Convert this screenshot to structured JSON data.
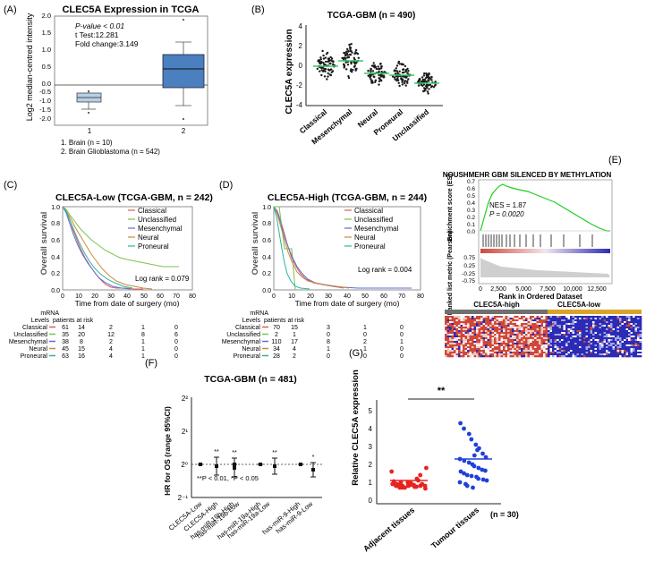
{
  "panels": {
    "A": {
      "letter": "(A)",
      "title": "CLEC5A Expression in TCGA",
      "ylabel": "Log2 median-centred intensity",
      "yticks": [
        "2.0",
        "1.5",
        "1.0",
        "0.5",
        "0.0",
        "-0.5",
        "-1.0",
        "-1.5",
        "-2.0"
      ],
      "xticks": [
        "1",
        "2"
      ],
      "stats": [
        "P-value < 0.01",
        "t Test:12.281",
        "Fold change:3.149"
      ],
      "legend": [
        "1. Brain (n = 10)",
        "2. Brain Glioblastoma (n = 542)"
      ],
      "colors": {
        "box1": "#b9cfe6",
        "box2": "#4a7fc0"
      }
    },
    "B": {
      "letter": "(B)",
      "title": "TCGA-GBM (n = 490)",
      "ylabel": "CLEC5A expression",
      "yticks": [
        "4",
        "2",
        "0",
        "-2",
        "-4"
      ],
      "categories": [
        "Classical",
        "Mesenchymal",
        "Neural",
        "Proneural",
        "Unclassified"
      ],
      "colors": {
        "mean": "#33cc66"
      }
    },
    "C": {
      "letter": "(C)",
      "title": "CLEC5A-Low (TCGA-GBM, n = 242)",
      "ylabel": "Overall survival",
      "xlabel": "Time from date of surgery (mo)",
      "yticks": [
        "1.0",
        "0.8",
        "0.6",
        "0.4",
        "0.2",
        "0.0"
      ],
      "xticks": [
        "0",
        "10",
        "20",
        "30",
        "40",
        "50",
        "60",
        "70",
        "80"
      ],
      "logrank": "Log rank = 0.079",
      "risk_header": [
        "mRNA",
        "Levels",
        "patients at risk"
      ],
      "risk_rows": [
        {
          "label": "Classical",
          "color": "#e05a5a",
          "vals": [
            "61",
            "14",
            "2",
            "1",
            "0"
          ]
        },
        {
          "label": "Unclassified",
          "color": "#7cc24a",
          "vals": [
            "35",
            "20",
            "12",
            "8",
            "6"
          ]
        },
        {
          "label": "Mesenchymal",
          "color": "#5b6fd6",
          "vals": [
            "38",
            "8",
            "2",
            "1",
            "0"
          ]
        },
        {
          "label": "Neural",
          "color": "#c98a3a",
          "vals": [
            "45",
            "15",
            "4",
            "1",
            "0"
          ]
        },
        {
          "label": "Proneural",
          "color": "#2bb3a3",
          "vals": [
            "63",
            "16",
            "4",
            "1",
            "0"
          ]
        }
      ]
    },
    "D": {
      "letter": "(D)",
      "title": "CLEC5A-High (TCGA-GBM, n = 244)",
      "ylabel": "Overall survival",
      "xlabel": "Time from date of surgery (mo)",
      "yticks": [
        "1.0",
        "0.8",
        "0.6",
        "0.4",
        "0.2",
        "0.0"
      ],
      "xticks": [
        "0",
        "10",
        "20",
        "30",
        "40",
        "50",
        "60",
        "70",
        "80"
      ],
      "logrank": "Log rank = 0.004",
      "risk_header": [
        "mRNA",
        "Levels",
        "patients at risk"
      ],
      "risk_rows": [
        {
          "label": "Classical",
          "color": "#e05a5a",
          "vals": [
            "70",
            "15",
            "3",
            "1",
            "0"
          ]
        },
        {
          "label": "Unclassified",
          "color": "#7cc24a",
          "vals": [
            "2",
            "1",
            "0",
            "0",
            "0"
          ]
        },
        {
          "label": "Mesenchymal",
          "color": "#5b6fd6",
          "vals": [
            "110",
            "17",
            "8",
            "2",
            "1"
          ]
        },
        {
          "label": "Neural",
          "color": "#c98a3a",
          "vals": [
            "34",
            "4",
            "1",
            "1",
            "0"
          ]
        },
        {
          "label": "Proneural",
          "color": "#2bb3a3",
          "vals": [
            "28",
            "2",
            "0",
            "0",
            "0"
          ]
        }
      ]
    },
    "E": {
      "letter": "(E)",
      "title": "NOUSHMEHR GBM SILENCED BY METHYLATION",
      "ylabel_top": "Enrichment score (ES)",
      "ylabel_bottom": "Ranked list metric (Pearson)",
      "yticks_top": [
        "0.7",
        "0.6",
        "0.5",
        "0.4",
        "0.3",
        "0.2",
        "0.1",
        "0.0"
      ],
      "yticks_bottom": [
        "0.75",
        "0.25",
        "-0.25",
        "-0.75"
      ],
      "xticks": [
        "0",
        "2,500",
        "5,000",
        "7,500",
        "10,000",
        "12,500"
      ],
      "xlabel": "Rank in Ordered Dataset",
      "nes": "NES = 1.87",
      "p": "P = 0.0020",
      "groups": [
        "CLEC5A-high",
        "CLEC5A-low"
      ],
      "colors": {
        "curve": "#22cc22",
        "high": "#d0473a",
        "low": "#2b2bb5"
      }
    },
    "F": {
      "letter": "(F)",
      "title": "TCGA-GBM (n = 481)",
      "ylabel": "HR for OS (range 95%CI)",
      "yticks": [
        "2²",
        "2¹",
        "2⁰",
        "2⁻¹"
      ],
      "xcats": [
        "CLEC5A-Low",
        "CLEC5A-High",
        "has-miR-19b-High",
        "has-miR-19b-Low",
        "has-miR-19a-High",
        "has-miR-19a-Low",
        "has-miR-9-High",
        "has-miR-9-Low"
      ],
      "note": "**P < 0.01, *P < 0.05",
      "sig": [
        "**",
        "**",
        "**",
        "*"
      ]
    },
    "G": {
      "letter": "(G)",
      "ylabel": "Relative CLEC5A expression",
      "yticks": [
        "5",
        "4",
        "3",
        "2",
        "1",
        "0"
      ],
      "categories": [
        "Adjacent tissues",
        "Tumour tissues"
      ],
      "sig": "**",
      "n": "(n = 30)",
      "colors": {
        "adjacent": "#e8231f",
        "tumour": "#2140d8"
      }
    }
  }
}
